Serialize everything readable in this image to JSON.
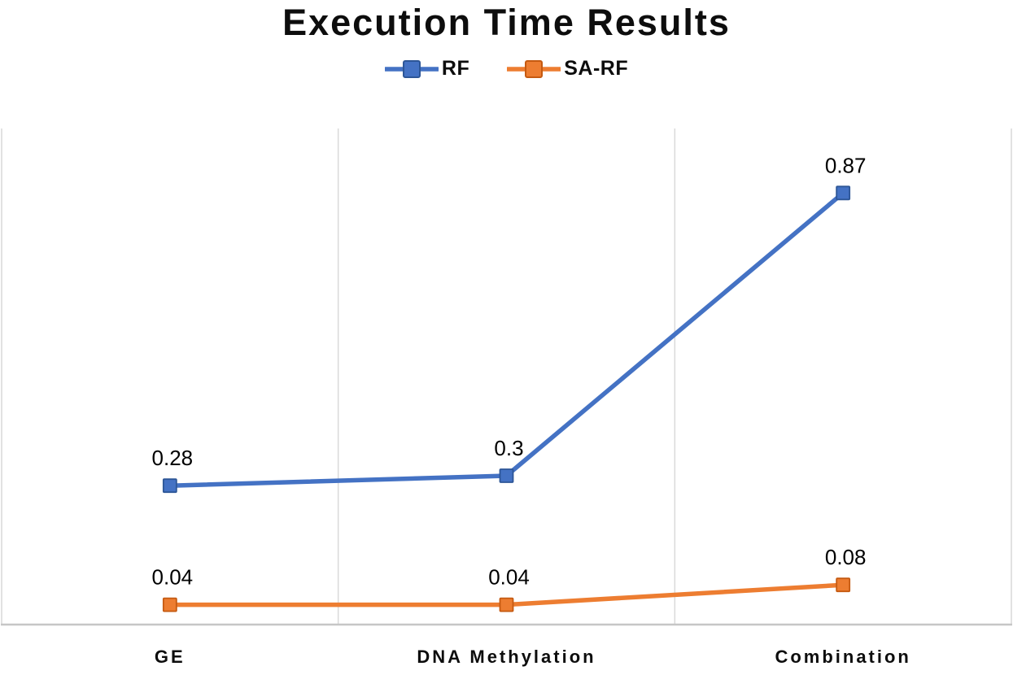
{
  "chart_data": {
    "type": "line",
    "title": "Execution Time Results",
    "categories": [
      "GE",
      "DNA Methylation",
      "Combination"
    ],
    "series": [
      {
        "name": "RF",
        "values": [
          0.28,
          0.3,
          0.87
        ],
        "labels": [
          "0.28",
          "0.3",
          "0.87"
        ],
        "color": "#4472C4",
        "marker": "square",
        "marker_border": "#2D5697"
      },
      {
        "name": "SA-RF",
        "values": [
          0.04,
          0.04,
          0.08
        ],
        "labels": [
          "0.04",
          "0.04",
          "0.08"
        ],
        "color": "#ED7D31",
        "marker": "square",
        "marker_border": "#C55A11"
      }
    ],
    "xlabel": "",
    "ylabel": "",
    "ylim": [
      0,
      1
    ],
    "y_axis_labels_visible": false,
    "grid": "vertical-category-boundaries",
    "legend_position": "top",
    "colors": {
      "gridline": "#D9D9D9",
      "axis_line": "#C6C6C6",
      "text": "#0d0d0d",
      "background": "#ffffff"
    }
  }
}
